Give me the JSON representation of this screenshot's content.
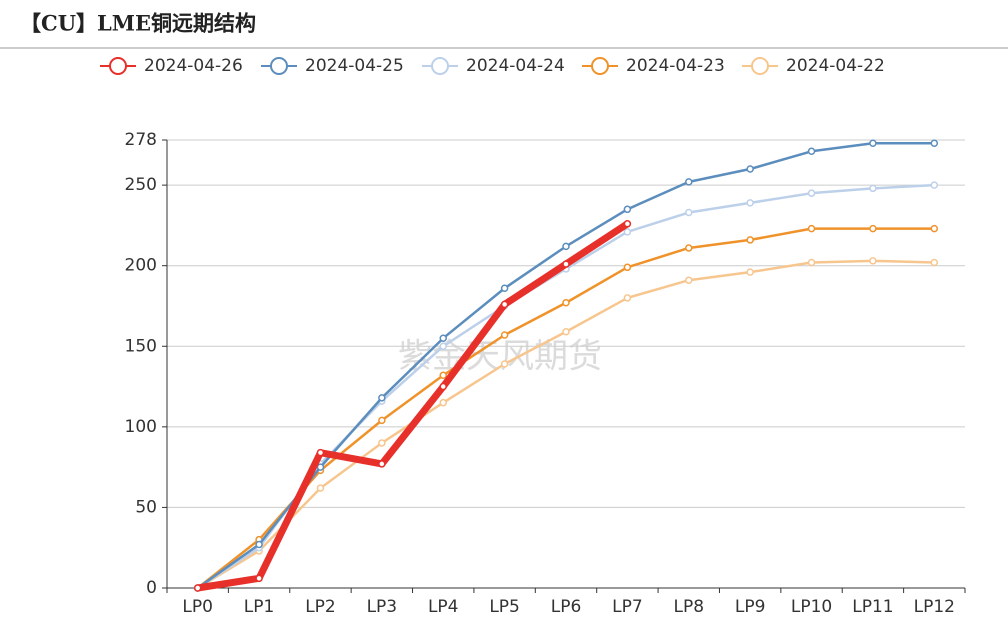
{
  "chart_data": {
    "type": "line",
    "title": "【CU】LME铜远期结构",
    "watermark": "紫金天风期货",
    "categories": [
      "LP0",
      "LP1",
      "LP2",
      "LP3",
      "LP4",
      "LP5",
      "LP6",
      "LP7",
      "LP8",
      "LP9",
      "LP10",
      "LP11",
      "LP12"
    ],
    "series": [
      {
        "name": "2024-04-26",
        "color": "#e8302a",
        "values": [
          0,
          6,
          84,
          77,
          125,
          176,
          201,
          226,
          null,
          null,
          null,
          null,
          null
        ]
      },
      {
        "name": "2024-04-25",
        "color": "#5b8dbd",
        "values": [
          0,
          27,
          75,
          118,
          155,
          186,
          212,
          235,
          252,
          260,
          271,
          276,
          276
        ]
      },
      {
        "name": "2024-04-24",
        "color": "#bcd0ea",
        "values": [
          0,
          25,
          77,
          116,
          150,
          175,
          198,
          221,
          233,
          239,
          245,
          248,
          250
        ]
      },
      {
        "name": "2024-04-23",
        "color": "#f0922a",
        "values": [
          0,
          30,
          73,
          104,
          132,
          157,
          177,
          199,
          211,
          216,
          223,
          223,
          223
        ]
      },
      {
        "name": "2024-04-22",
        "color": "#f7c68e",
        "values": [
          0,
          23,
          62,
          90,
          115,
          139,
          159,
          180,
          191,
          196,
          202,
          203,
          202
        ]
      }
    ],
    "ylim": [
      0,
      278
    ],
    "yticks": [
      0,
      50,
      100,
      150,
      200,
      250,
      278
    ],
    "grid": true
  }
}
